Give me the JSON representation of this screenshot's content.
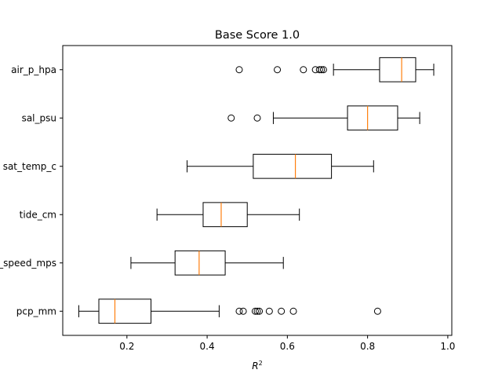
{
  "chart_data": {
    "type": "boxplot",
    "orientation": "horizontal",
    "title": "Base Score 1.0",
    "xlabel_base": "R",
    "xlabel_sup": "2",
    "ylabel": "",
    "xlim": [
      0.04,
      1.01
    ],
    "xticks": [
      0.2,
      0.4,
      0.6,
      0.8,
      1.0
    ],
    "xtick_labels": [
      "0.2",
      "0.4",
      "0.6",
      "0.8",
      "1.0"
    ],
    "categories": [
      "pcp_mm",
      "wind_speed_mps",
      "tide_cm",
      "sat_temp_c",
      "sal_psu",
      "air_p_hpa"
    ],
    "boxes": [
      {
        "label": "pcp_mm",
        "whislo": 0.08,
        "q1": 0.13,
        "med": 0.17,
        "q3": 0.26,
        "whishi": 0.43,
        "fliers": [
          0.48,
          0.49,
          0.52,
          0.525,
          0.53,
          0.555,
          0.585,
          0.615,
          0.825
        ]
      },
      {
        "label": "wind_speed_mps",
        "whislo": 0.21,
        "q1": 0.32,
        "med": 0.38,
        "q3": 0.445,
        "whishi": 0.59,
        "fliers": []
      },
      {
        "label": "tide_cm",
        "whislo": 0.275,
        "q1": 0.39,
        "med": 0.435,
        "q3": 0.5,
        "whishi": 0.63,
        "fliers": []
      },
      {
        "label": "sat_temp_c",
        "whislo": 0.35,
        "q1": 0.515,
        "med": 0.62,
        "q3": 0.71,
        "whishi": 0.815,
        "fliers": []
      },
      {
        "label": "sal_psu",
        "whislo": 0.565,
        "q1": 0.75,
        "med": 0.8,
        "q3": 0.875,
        "whishi": 0.93,
        "fliers": [
          0.46,
          0.525
        ]
      },
      {
        "label": "air_p_hpa",
        "whislo": 0.715,
        "q1": 0.83,
        "med": 0.885,
        "q3": 0.92,
        "whishi": 0.965,
        "fliers": [
          0.48,
          0.575,
          0.64,
          0.67,
          0.68,
          0.685,
          0.69
        ]
      }
    ],
    "colors": {
      "median": "#ff7f0e",
      "box": "#000000"
    },
    "grid": false,
    "legend": "none"
  }
}
